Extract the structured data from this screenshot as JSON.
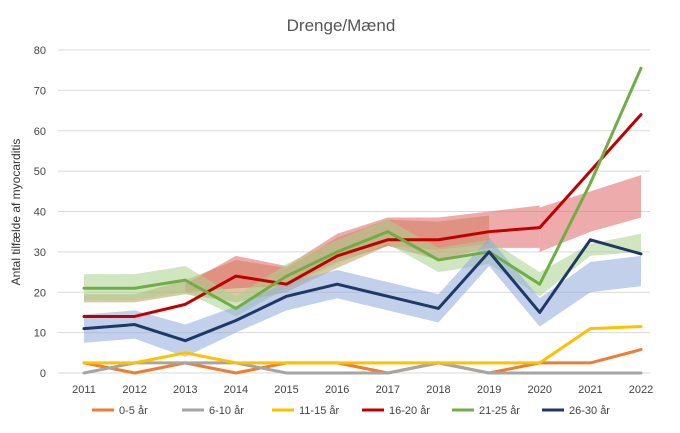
{
  "chart_data": {
    "type": "line",
    "title": "Drenge/Mænd",
    "xlabel": "",
    "ylabel": "Antal tilfælde af myocarditis",
    "x": [
      "2011",
      "2012",
      "2013",
      "2014",
      "2015",
      "2016",
      "2017",
      "2018",
      "2019",
      "2020",
      "2021",
      "2022"
    ],
    "ylim": [
      0,
      80
    ],
    "yticks": [
      0,
      10,
      20,
      30,
      40,
      50,
      60,
      70,
      80
    ],
    "grid": "horizontal",
    "legend_position": "bottom",
    "series": [
      {
        "name": "0-5 år",
        "color": "#ED7D31",
        "values": [
          2.5,
          0,
          2.5,
          0,
          2.5,
          2.5,
          0,
          2.5,
          0,
          2.5,
          2.5,
          5.8
        ]
      },
      {
        "name": "6-10 år",
        "color": "#A5A5A5",
        "values": [
          0,
          2.5,
          2.5,
          2.5,
          0,
          0,
          0,
          2.5,
          0,
          0,
          0,
          0
        ]
      },
      {
        "name": "11-15 år",
        "color": "#FFC000",
        "values": [
          2.5,
          2.5,
          5,
          2.5,
          2.5,
          2.5,
          2.5,
          2.5,
          2.5,
          2.5,
          11,
          11.5
        ]
      },
      {
        "name": "16-20 år",
        "color": "#C00000",
        "values": [
          14,
          14,
          17,
          24,
          22,
          29,
          33,
          33,
          35,
          36,
          50,
          64
        ],
        "band": {
          "color": "#E06666",
          "lower": [
            null,
            null,
            null,
            null,
            null,
            null,
            null,
            null,
            null,
            30,
            35,
            38.5
          ],
          "upper": [
            null,
            null,
            null,
            null,
            null,
            null,
            null,
            null,
            null,
            41,
            45,
            49
          ]
        }
      },
      {
        "name": "21-25 år",
        "color": "#70AD47",
        "values": [
          21,
          21,
          23,
          16,
          24,
          30,
          35,
          28,
          30,
          22,
          47,
          75.5
        ],
        "band": {
          "color": "#A9D18E",
          "lower": [
            18,
            18,
            20,
            14,
            21,
            27,
            32,
            25,
            27,
            19,
            29,
            30
          ],
          "upper": [
            24.5,
            24.5,
            26.5,
            19,
            27,
            33,
            38,
            31,
            33,
            25,
            32,
            34.5
          ]
        }
      },
      {
        "name": "26-30 år",
        "color": "#203864",
        "values": [
          11,
          12,
          8,
          13,
          19,
          22,
          19,
          16,
          30,
          15,
          33,
          29.5
        ],
        "band": {
          "color": "#8FAADC",
          "lower": [
            7.5,
            8.5,
            4,
            10,
            15.5,
            18.5,
            15.5,
            12.5,
            26.5,
            11.5,
            20,
            21.5
          ],
          "upper": [
            14.5,
            15.5,
            12,
            16.5,
            22.5,
            25.5,
            22.5,
            19.5,
            33.5,
            18.5,
            27.5,
            29
          ]
        }
      }
    ],
    "extra_bands": [
      {
        "color": "#C39A5A",
        "x_index": [
          0,
          1,
          2,
          3,
          4,
          5,
          6,
          7,
          8
        ],
        "lower": [
          17.5,
          17.5,
          19.5,
          17.5,
          20,
          26,
          31.5,
          30.5,
          32
        ],
        "upper": [
          19.5,
          19.5,
          23,
          28,
          26,
          33.5,
          38,
          37.5,
          39
        ]
      },
      {
        "color": "#E06666",
        "x_index": [
          2,
          3,
          4,
          5,
          6,
          7,
          8,
          9
        ],
        "lower": [
          20,
          21,
          21.5,
          27.5,
          31.5,
          28,
          31,
          31
        ],
        "upper": [
          22,
          29,
          26.5,
          34.5,
          38.5,
          38.5,
          40,
          41.5
        ]
      }
    ]
  }
}
